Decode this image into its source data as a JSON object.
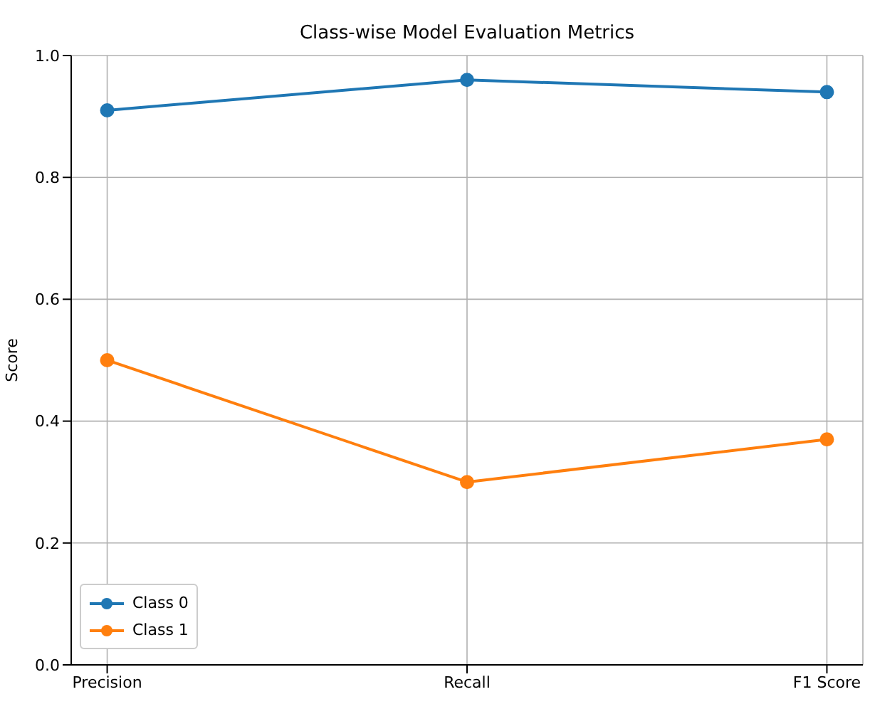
{
  "chart_data": {
    "type": "line",
    "title": "Class-wise Model Evaluation Metrics",
    "ylabel": "Score",
    "categories": [
      "Precision",
      "Recall",
      "F1 Score"
    ],
    "series": [
      {
        "name": "Class 0",
        "color": "#1f77b4",
        "values": [
          0.91,
          0.96,
          0.94
        ]
      },
      {
        "name": "Class 1",
        "color": "#ff7f0e",
        "values": [
          0.5,
          0.3,
          0.37
        ]
      }
    ],
    "ylim": [
      0,
      1
    ],
    "yticks": [
      {
        "value": 0,
        "label": "0.0"
      },
      {
        "value": 0.2,
        "label": "0.2"
      },
      {
        "value": 0.4,
        "label": "0.4"
      },
      {
        "value": 0.6,
        "label": "0.6"
      },
      {
        "value": 0.8,
        "label": "0.8"
      },
      {
        "value": 1,
        "label": "1.0"
      }
    ],
    "grid": true,
    "legend": "bottom left",
    "marker": "circle",
    "line_style": "solid"
  }
}
